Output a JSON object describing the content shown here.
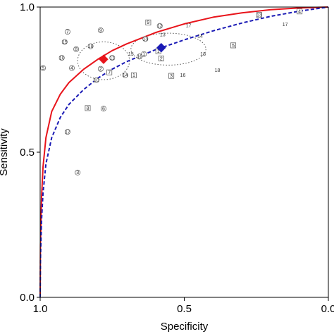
{
  "chart_data": {
    "type": "scatter",
    "title": "",
    "xlabel": "Specificity",
    "ylabel": "Sensitivity",
    "x_axis_reversed": true,
    "xlim": [
      1.0,
      0.0
    ],
    "ylim": [
      0.0,
      1.0
    ],
    "x_ticks": [
      {
        "value": 1.0,
        "label": "1.0"
      },
      {
        "value": 0.5,
        "label": "0.5"
      },
      {
        "value": 0.0,
        "label": "0.0"
      }
    ],
    "y_ticks": [
      {
        "value": 0.0,
        "label": "0.0"
      },
      {
        "value": 0.5,
        "label": "0.5"
      },
      {
        "value": 1.0,
        "label": "1.0"
      }
    ],
    "grid": false,
    "legend": "none",
    "series": [
      {
        "id": "a",
        "marker": "circle",
        "curve_color": "#e8141b",
        "curve_style": "solid",
        "summary_point": {
          "specificity": 0.78,
          "sensitivity": 0.82
        },
        "confidence_ellipse": {
          "cx": 0.78,
          "cy": 0.815,
          "rx": 0.09,
          "ry": 0.065
        },
        "curve_points": [
          [
            1.0,
            0.0
          ],
          [
            0.999,
            0.18
          ],
          [
            0.995,
            0.35
          ],
          [
            0.99,
            0.45
          ],
          [
            0.98,
            0.55
          ],
          [
            0.96,
            0.64
          ],
          [
            0.93,
            0.7
          ],
          [
            0.9,
            0.74
          ],
          [
            0.85,
            0.785
          ],
          [
            0.8,
            0.82
          ],
          [
            0.75,
            0.85
          ],
          [
            0.7,
            0.873
          ],
          [
            0.6,
            0.912
          ],
          [
            0.5,
            0.942
          ],
          [
            0.4,
            0.965
          ],
          [
            0.3,
            0.98
          ],
          [
            0.2,
            0.991
          ],
          [
            0.1,
            0.997
          ],
          [
            0.0,
            1.0
          ]
        ],
        "studies": [
          {
            "label": "1",
            "specificity": 0.64,
            "sensitivity": 0.838
          },
          {
            "label": "2",
            "specificity": 0.79,
            "sensitivity": 0.787
          },
          {
            "label": "3",
            "specificity": 0.87,
            "sensitivity": 0.43
          },
          {
            "label": "4",
            "specificity": 0.89,
            "sensitivity": 0.79
          },
          {
            "label": "5",
            "specificity": 0.99,
            "sensitivity": 0.79
          },
          {
            "label": "6",
            "specificity": 0.78,
            "sensitivity": 0.65
          },
          {
            "label": "7",
            "specificity": 0.905,
            "sensitivity": 0.915
          },
          {
            "label": "8",
            "specificity": 0.875,
            "sensitivity": 0.855
          },
          {
            "label": "9",
            "specificity": 0.79,
            "sensitivity": 0.92
          },
          {
            "label": "10",
            "specificity": 0.925,
            "sensitivity": 0.825
          },
          {
            "label": "11",
            "specificity": 0.75,
            "sensitivity": 0.825
          },
          {
            "label": "12",
            "specificity": 0.585,
            "sensitivity": 0.935
          },
          {
            "label": "13",
            "specificity": 0.635,
            "sensitivity": 0.89
          },
          {
            "label": "14",
            "specificity": 0.705,
            "sensitivity": 0.765
          },
          {
            "label": "15",
            "specificity": 0.915,
            "sensitivity": 0.88
          },
          {
            "label": "16",
            "specificity": 0.655,
            "sensitivity": 0.83
          },
          {
            "label": "17",
            "specificity": 0.905,
            "sensitivity": 0.57
          },
          {
            "label": "18",
            "specificity": 0.825,
            "sensitivity": 0.865
          },
          {
            "label": "10",
            "specificity": 0.805,
            "sensitivity": 0.748
          }
        ]
      },
      {
        "id": "b",
        "marker": "square",
        "curve_color": "#1a1ab5",
        "curve_style": "dashed",
        "summary_point": {
          "specificity": 0.58,
          "sensitivity": 0.86
        },
        "confidence_ellipse": {
          "cx": 0.555,
          "cy": 0.855,
          "rx": 0.13,
          "ry": 0.055
        },
        "curve_points": [
          [
            1.0,
            0.0
          ],
          [
            0.999,
            0.13
          ],
          [
            0.995,
            0.27
          ],
          [
            0.99,
            0.36
          ],
          [
            0.98,
            0.46
          ],
          [
            0.96,
            0.55
          ],
          [
            0.93,
            0.62
          ],
          [
            0.9,
            0.665
          ],
          [
            0.85,
            0.715
          ],
          [
            0.8,
            0.755
          ],
          [
            0.75,
            0.786
          ],
          [
            0.7,
            0.812
          ],
          [
            0.6,
            0.853
          ],
          [
            0.5,
            0.887
          ],
          [
            0.4,
            0.918
          ],
          [
            0.3,
            0.945
          ],
          [
            0.2,
            0.968
          ],
          [
            0.1,
            0.986
          ],
          [
            0.0,
            1.0
          ]
        ],
        "studies": [
          {
            "label": "1",
            "specificity": 0.59,
            "sensitivity": 0.848
          },
          {
            "label": "1",
            "specificity": 0.675,
            "sensitivity": 0.765
          },
          {
            "label": "2",
            "specificity": 0.58,
            "sensitivity": 0.823
          },
          {
            "label": "3",
            "specificity": 0.545,
            "sensitivity": 0.763
          },
          {
            "label": "4",
            "specificity": 0.1,
            "sensitivity": 0.985
          },
          {
            "label": "5",
            "specificity": 0.33,
            "sensitivity": 0.868
          },
          {
            "label": "7",
            "specificity": 0.76,
            "sensitivity": 0.775
          },
          {
            "label": "8",
            "specificity": 0.835,
            "sensitivity": 0.652
          },
          {
            "label": "9",
            "specificity": 0.625,
            "sensitivity": 0.947
          },
          {
            "label": "13",
            "specificity": 0.24,
            "sensitivity": 0.973
          }
        ]
      },
      {
        "id": "c",
        "marker": "plain",
        "curve_color": null,
        "studies": [
          {
            "label": "13",
            "specificity": 0.575,
            "sensitivity": 0.905
          },
          {
            "label": "14",
            "specificity": 0.445,
            "sensitivity": 0.9
          },
          {
            "label": "15",
            "specificity": 0.685,
            "sensitivity": 0.838
          },
          {
            "label": "16",
            "specificity": 0.505,
            "sensitivity": 0.765
          },
          {
            "label": "17",
            "specificity": 0.485,
            "sensitivity": 0.937
          },
          {
            "label": "17",
            "specificity": 0.15,
            "sensitivity": 0.94
          },
          {
            "label": "18",
            "specificity": 0.435,
            "sensitivity": 0.838
          },
          {
            "label": "18",
            "specificity": 0.385,
            "sensitivity": 0.783
          }
        ]
      }
    ]
  }
}
